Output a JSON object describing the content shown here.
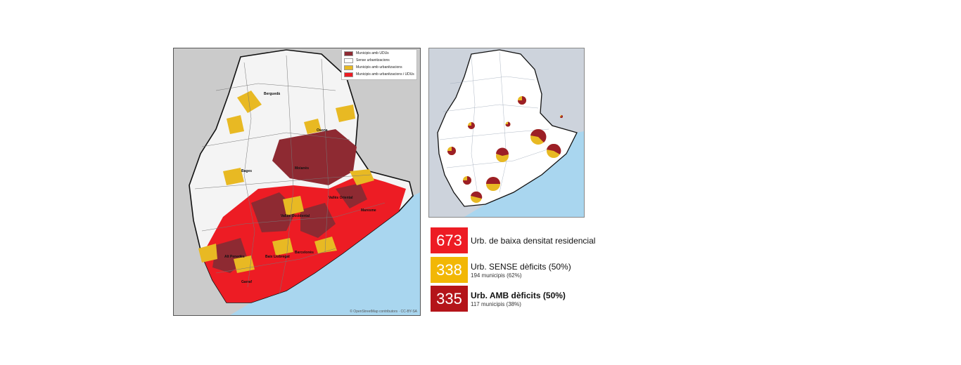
{
  "colors": {
    "udus": "#8e2a32",
    "none": "#f4f4f4",
    "urban": "#e8b923",
    "both": "#ed1c24",
    "sea": "#a9d6ef",
    "outside": "#cbcbcb",
    "box_total": "#ed1c24",
    "box_sense": "#f2b705",
    "box_amb": "#b41419"
  },
  "legend": {
    "items": [
      {
        "label": "Municipis amb UDUs"
      },
      {
        "label": "Sense urbanitzacions"
      },
      {
        "label": "Municipis amb urbanitzacions"
      },
      {
        "label": "Municipis amb urbanitzacions i UDUs"
      }
    ]
  },
  "map_main": {
    "places": {
      "bergueda": "Berguedà",
      "osona": "Osona",
      "bages": "Bages",
      "moianes": "Moianès",
      "valles_oriental": "Vallès Oriental",
      "valles_occidental": "Vallès Occidental",
      "maresme": "Maresme",
      "baix_llobregat": "Baix Llobregat",
      "barcelones": "Barcelonès",
      "alt_penedes": "Alt Penedès",
      "garraf": "Garraf"
    },
    "credit": "© OpenStreetMap contributors · CC-BY-SA"
  },
  "stats": {
    "total": {
      "value": "673",
      "label": "Urb. de baixa densitat residencial"
    },
    "sense": {
      "value": "338",
      "label": "Urb. SENSE dèficits (50%)",
      "sub": "194 municipis (62%)"
    },
    "amb": {
      "value": "335",
      "label": "Urb. AMB dèficits (50%)",
      "sub": "117 municipis (38%)"
    }
  }
}
